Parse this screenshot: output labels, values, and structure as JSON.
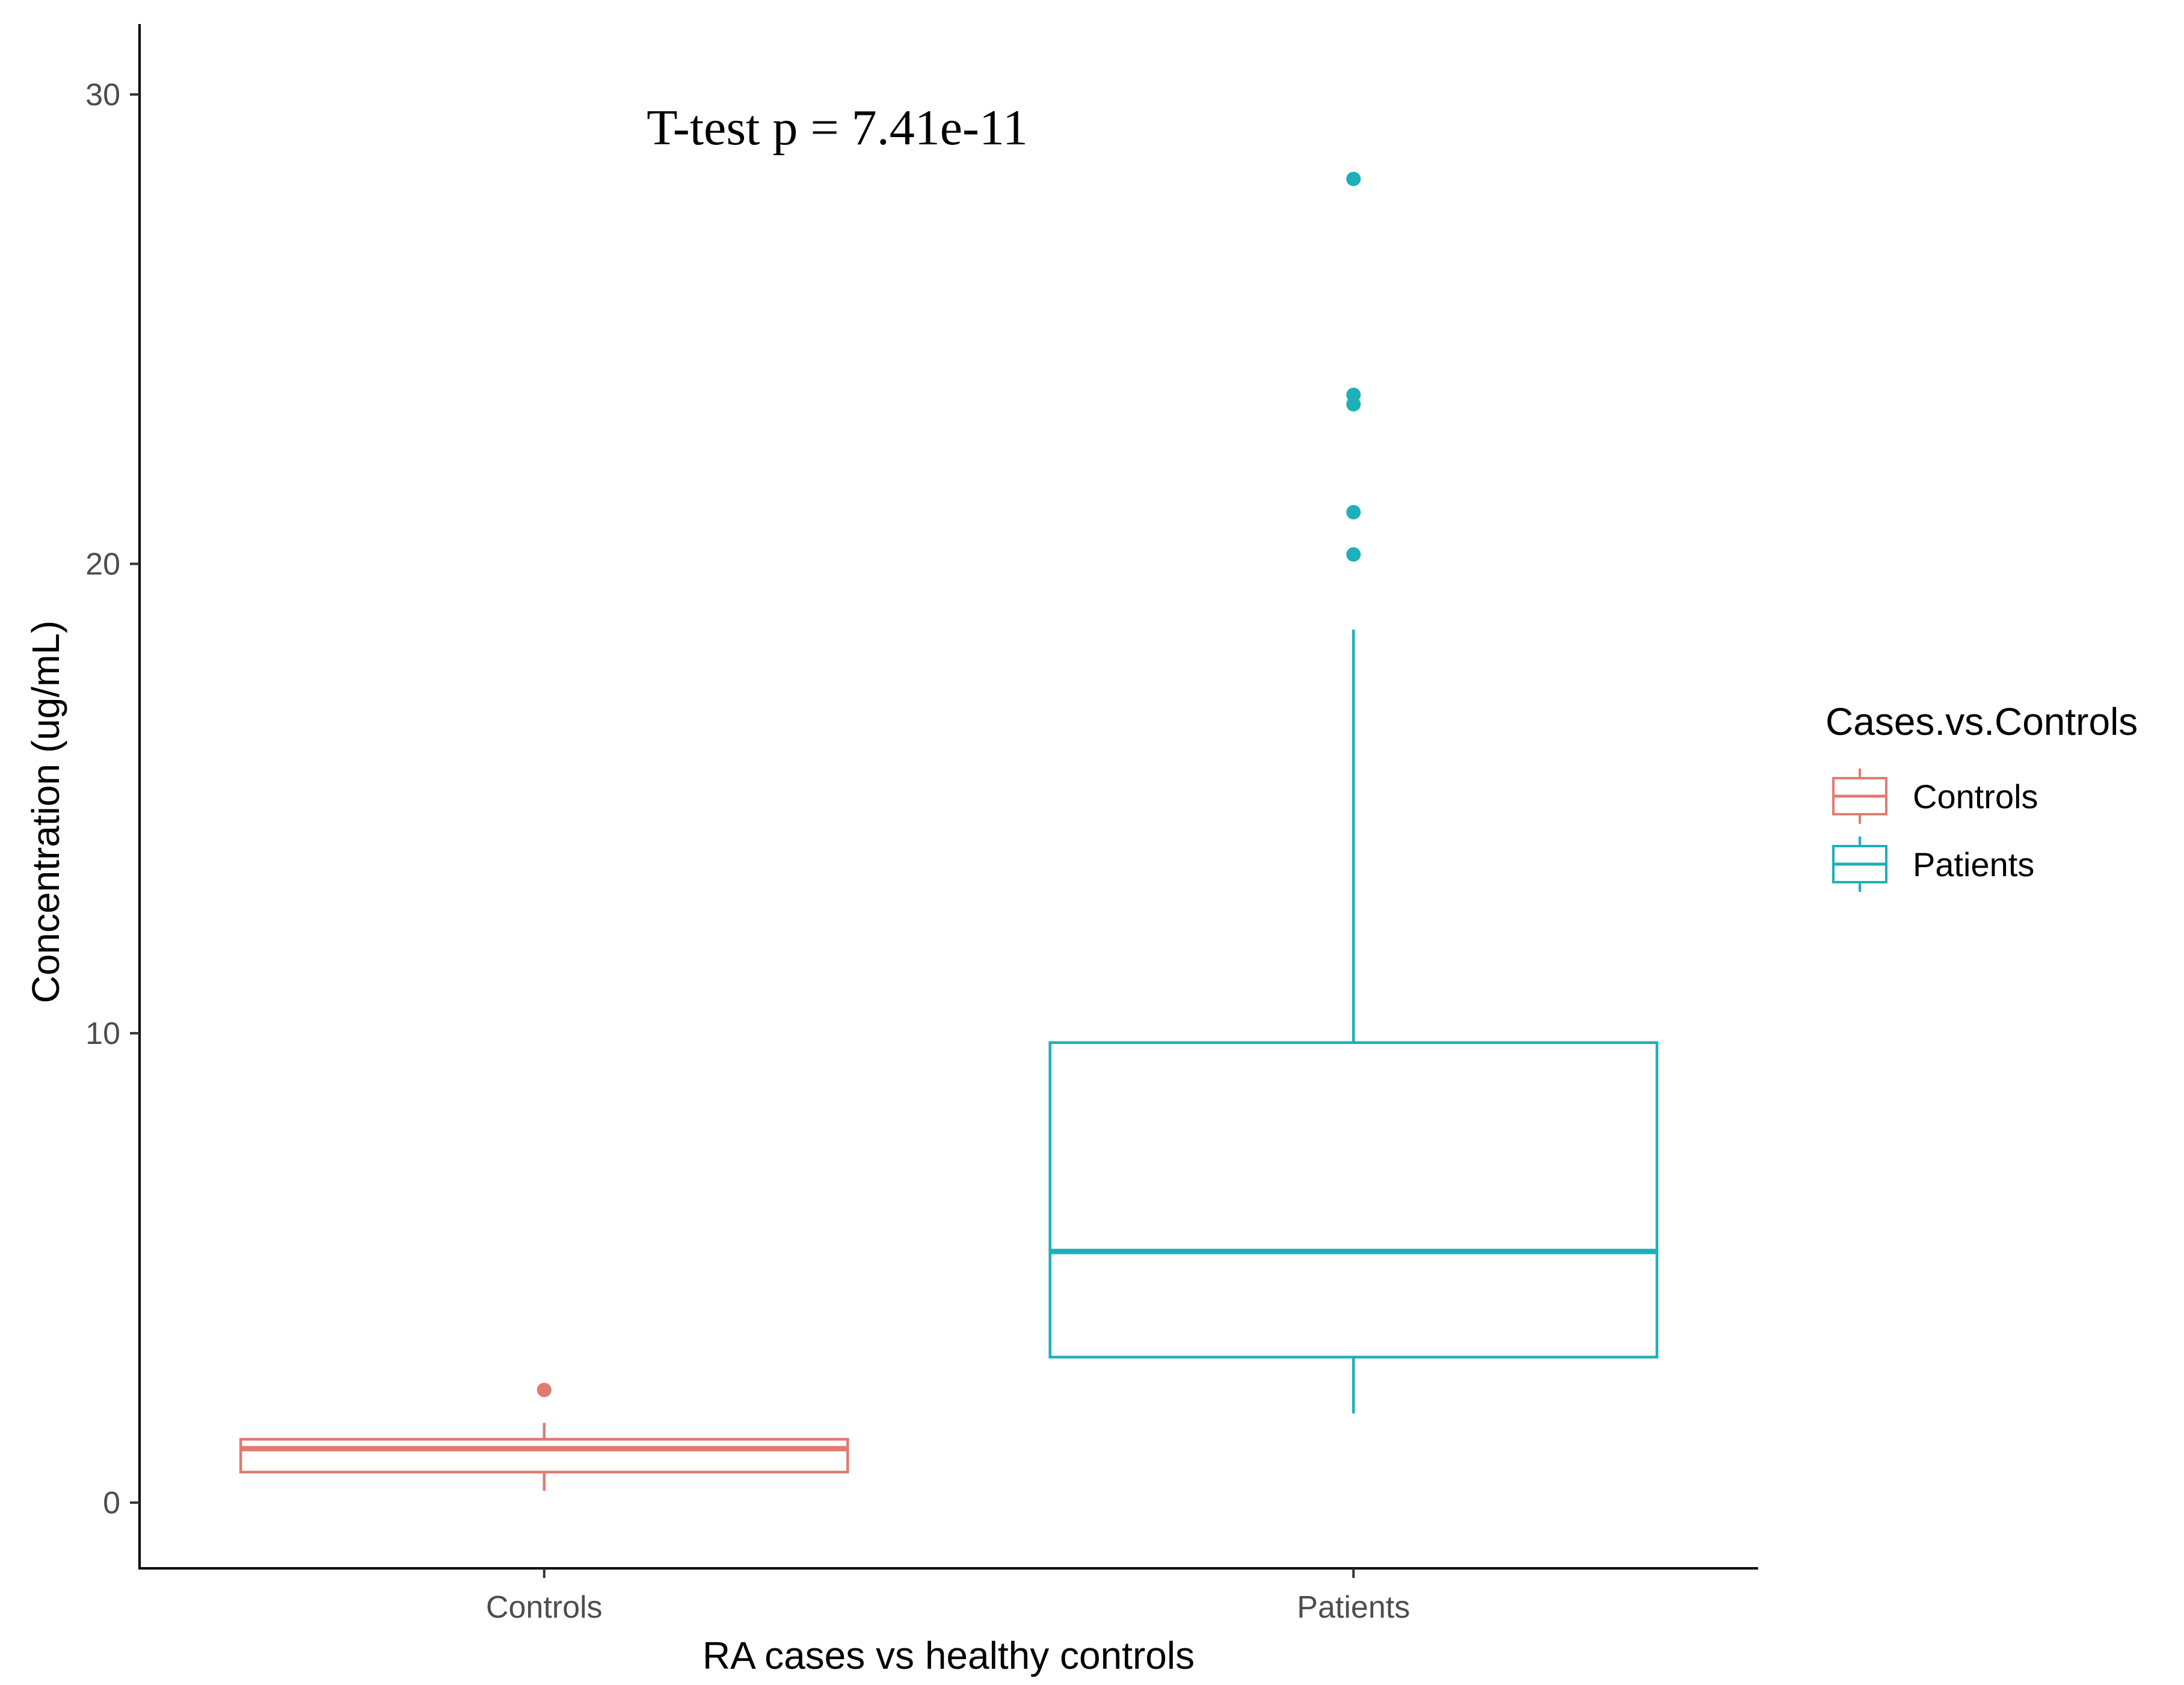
{
  "chart_data": {
    "type": "boxplot",
    "annotation": "T-test p = 7.41e-11",
    "xlabel": "RA cases vs healthy controls",
    "ylabel": "Concentration (ug/mL)",
    "ylim": [
      -1.4,
      31.5
    ],
    "yticks": [
      0,
      10,
      20,
      30
    ],
    "ytick_labels": [
      "0",
      "10",
      "20",
      "30"
    ],
    "grid": false,
    "legend": {
      "title": "Cases.vs.Controls",
      "position": "right",
      "entries": [
        "Controls",
        "Patients"
      ]
    },
    "categories": [
      "Controls",
      "Patients"
    ],
    "series": [
      {
        "name": "Controls",
        "color": "#E07B71",
        "whisker_low": 0.25,
        "q1": 0.65,
        "median": 1.15,
        "q3": 1.35,
        "whisker_high": 1.7,
        "outliers": [
          2.4
        ]
      },
      {
        "name": "Patients",
        "color": "#1DB0B8",
        "whisker_low": 1.9,
        "q1": 3.1,
        "median": 5.35,
        "q3": 9.8,
        "whisker_high": 18.6,
        "outliers": [
          28.2,
          23.6,
          23.4,
          21.1,
          20.2
        ]
      }
    ]
  }
}
